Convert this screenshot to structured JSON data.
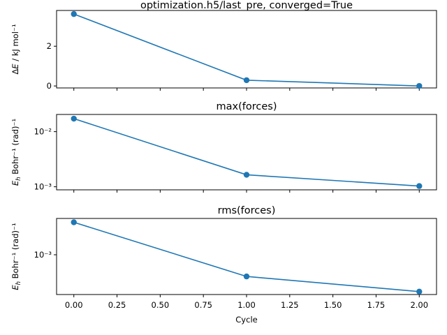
{
  "chart_data": [
    {
      "type": "line",
      "title": "optimization.h5/last_pre, converged=True",
      "ylabel": "ΔE / kJ mol⁻¹",
      "yscale": "linear",
      "ylim": [
        -0.1,
        3.8
      ],
      "xlim": [
        -0.1,
        2.1
      ],
      "x": [
        0,
        1,
        2
      ],
      "y": [
        3.62,
        0.29,
        0.0
      ],
      "yticks": [
        {
          "value": 0,
          "label": "0"
        },
        {
          "value": 2,
          "label": "2"
        }
      ],
      "xticks_labeled": false,
      "xlabel": ""
    },
    {
      "type": "line",
      "title": "max(forces)",
      "ylabel": "Eh Bohr⁻¹ (rad)⁻¹",
      "yscale": "log",
      "ylim": [
        0.00088,
        0.0205
      ],
      "xlim": [
        -0.1,
        2.1
      ],
      "x": [
        0,
        1,
        2
      ],
      "y": [
        0.0172,
        0.00165,
        0.00103
      ],
      "yticks": [
        {
          "value": 0.001,
          "label": "10⁻³"
        },
        {
          "value": 0.01,
          "label": "10⁻²"
        }
      ],
      "xticks_labeled": false,
      "xlabel": ""
    },
    {
      "type": "line",
      "title": "rms(forces)",
      "ylabel": "Eh Bohr⁻¹ (rad)⁻¹",
      "yscale": "log",
      "ylim": [
        0.000195,
        0.00445
      ],
      "xlim": [
        -0.1,
        2.1
      ],
      "x": [
        0,
        1,
        2
      ],
      "y": [
        0.0038,
        0.00041,
        0.00022
      ],
      "yticks": [
        {
          "value": 0.001,
          "label": "10⁻³"
        }
      ],
      "xticks_labeled": true,
      "xticks": [
        {
          "value": 0.0,
          "label": "0.00"
        },
        {
          "value": 0.25,
          "label": "0.25"
        },
        {
          "value": 0.5,
          "label": "0.50"
        },
        {
          "value": 0.75,
          "label": "0.75"
        },
        {
          "value": 1.0,
          "label": "1.00"
        },
        {
          "value": 1.25,
          "label": "1.25"
        },
        {
          "value": 1.5,
          "label": "1.50"
        },
        {
          "value": 1.75,
          "label": "1.75"
        },
        {
          "value": 2.0,
          "label": "2.00"
        }
      ],
      "xlabel": "Cycle"
    }
  ]
}
